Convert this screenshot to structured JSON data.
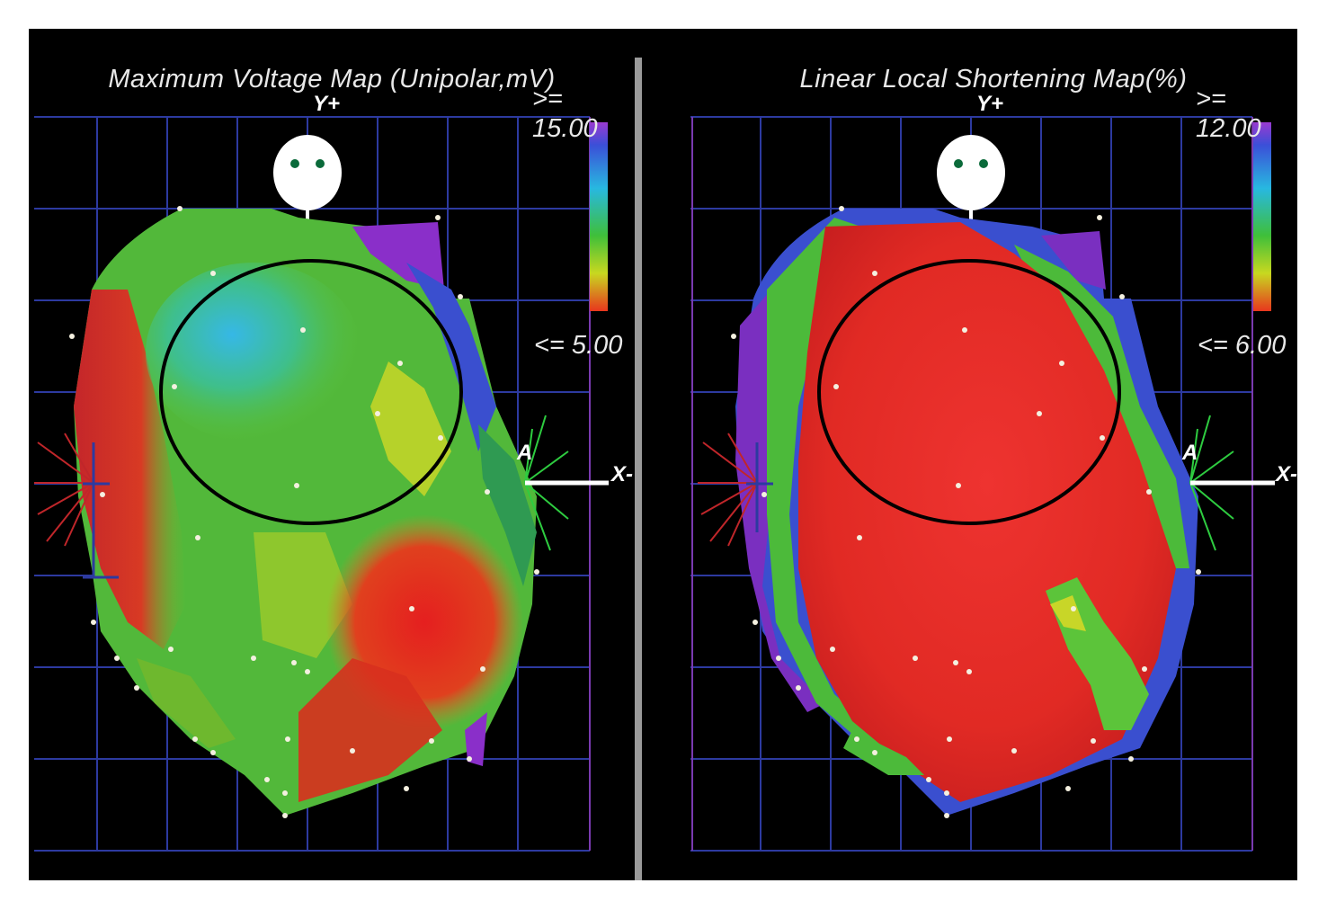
{
  "panels": [
    {
      "title": "Maximum Voltage Map (Unipolar,mV)",
      "max_label": ">= 15.00",
      "min_label": "<= 5.00",
      "y_axis_label": "Y+",
      "x_axis_label": "X-",
      "anterior_label": "A"
    },
    {
      "title": "Linear Local Shortening Map(%)",
      "max_label": ">= 12.00",
      "min_label": "<= 6.00",
      "y_axis_label": "Y+",
      "x_axis_label": "X-",
      "anterior_label": "A"
    }
  ],
  "colors": {
    "background": "#000000",
    "grid": "#2d3aa0",
    "divider": "#9a9a9a",
    "circle": "#000000",
    "red": "#e42a23",
    "green": "#3fae2e",
    "blue": "#2a7fd6",
    "purple": "#8a2fc9"
  }
}
